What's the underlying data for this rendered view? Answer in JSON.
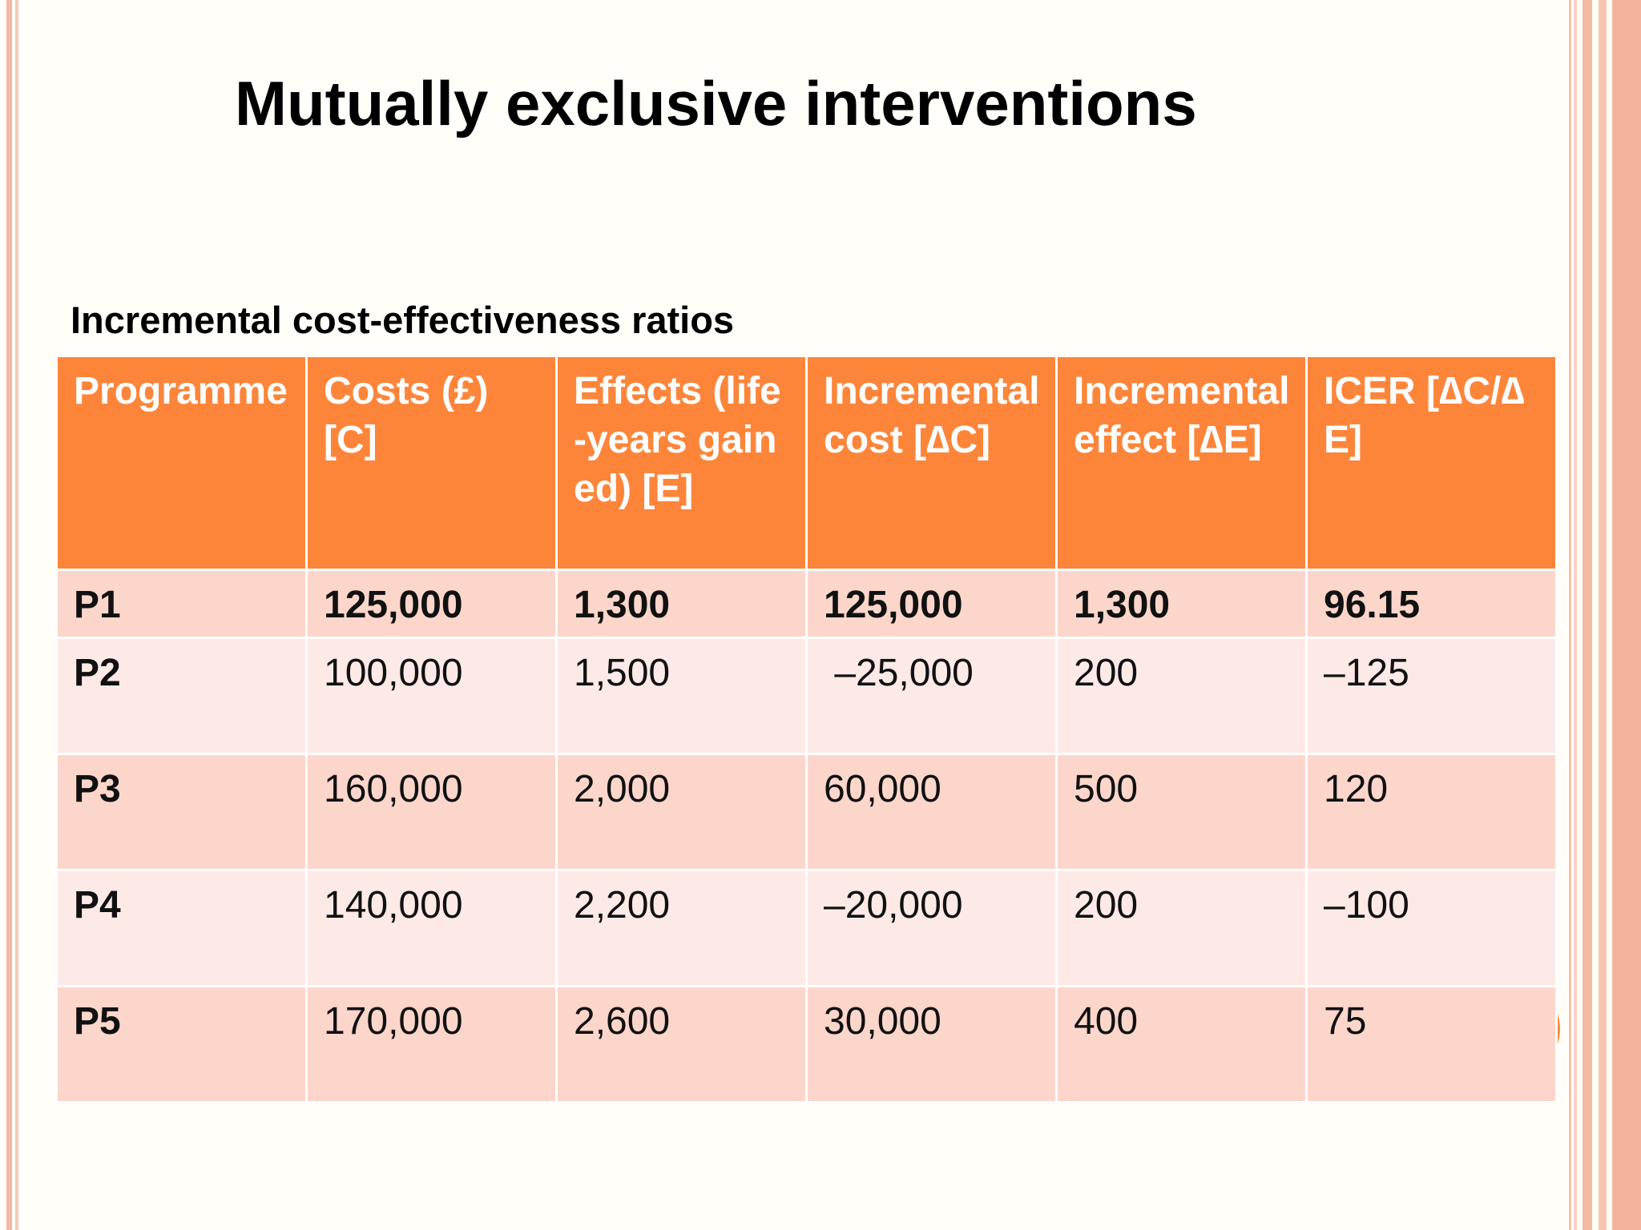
{
  "slide": {
    "title": "Mutually exclusive interventions",
    "subtitle": "Incremental cost-effectiveness ratios"
  },
  "table": {
    "headers": [
      "Programme",
      "Costs (£) [C]",
      "Effects (life-years gained) [E]",
      "Incremental cost [∆C]",
      "Incremental effect [∆E]",
      "ICER [∆C/∆E]"
    ],
    "rows": [
      [
        "P1",
        "125,000",
        "1,300",
        "125,000",
        "1,300",
        "96.15"
      ],
      [
        "P2",
        "100,000",
        "1,500",
        " –25,000",
        "200",
        "–125"
      ],
      [
        "P3",
        "160,000",
        "2,000",
        "60,000",
        "500",
        "120"
      ],
      [
        "P4",
        "140,000",
        "2,200",
        "–20,000",
        "200",
        "–100"
      ],
      [
        "P5",
        "170,000",
        "2,600",
        "30,000",
        "400",
        "75"
      ]
    ]
  },
  "colors": {
    "header_fill": "#fd853a",
    "row_odd": "#fcd6cb",
    "row_even": "#fdeae6",
    "accent_circle": "#fd8a3c"
  }
}
